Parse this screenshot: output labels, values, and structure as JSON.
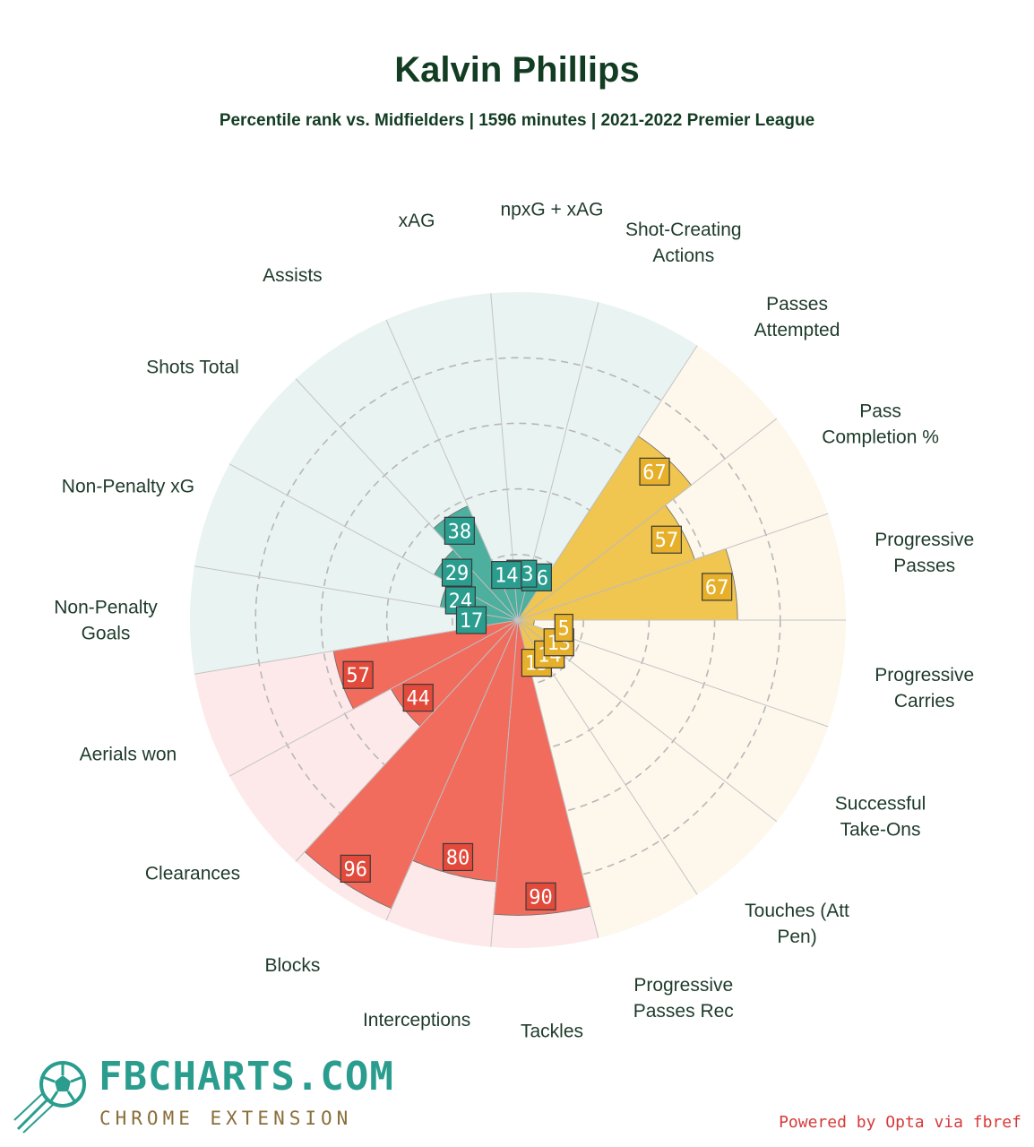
{
  "header": {
    "title": "Kalvin Phillips",
    "subtitle": "Percentile rank vs. Midfielders | 1596 minutes | 2021-2022 Premier League"
  },
  "chart_data": {
    "type": "polar-bar",
    "radial_range": [
      0,
      100
    ],
    "rings": [
      20,
      40,
      60,
      80
    ],
    "colors": {
      "attacking": "#4daf9e",
      "attacking_bg": "#e9f3f1",
      "possession": "#f0c550",
      "possession_bg": "#fdf7ec",
      "defending": "#f26c5e",
      "defending_bg": "#fde9e9",
      "attacking_label": "#2a9d8f",
      "possession_label": "#e7b02a",
      "defending_label": "#e24a3b"
    },
    "categories": [
      {
        "label": "Progressive\nPasses",
        "value": 67,
        "group": "possession"
      },
      {
        "label": "Pass\nCompletion %",
        "value": 57,
        "group": "possession"
      },
      {
        "label": "Passes\nAttempted",
        "value": 67,
        "group": "possession"
      },
      {
        "label": "Shot-Creating\nActions",
        "value": 16,
        "group": "attacking"
      },
      {
        "label": "npxG + xAG",
        "value": 13,
        "group": "attacking"
      },
      {
        "label": "xAG",
        "value": 14,
        "group": "attacking"
      },
      {
        "label": "Assists",
        "value": 38,
        "group": "attacking"
      },
      {
        "label": "Shots Total",
        "value": 29,
        "group": "attacking"
      },
      {
        "label": "Non-Penalty xG",
        "value": 24,
        "group": "attacking"
      },
      {
        "label": "Non-Penalty\nGoals",
        "value": 17,
        "group": "attacking"
      },
      {
        "label": "Aerials won",
        "value": 57,
        "group": "defending"
      },
      {
        "label": "Clearances",
        "value": 44,
        "group": "defending"
      },
      {
        "label": "Blocks",
        "value": 96,
        "group": "defending"
      },
      {
        "label": "Interceptions",
        "value": 80,
        "group": "defending"
      },
      {
        "label": "Tackles",
        "value": 90,
        "group": "defending"
      },
      {
        "label": "Progressive\nPasses Rec",
        "value": 15,
        "group": "possession"
      },
      {
        "label": "Touches (Att\nPen)",
        "value": 14,
        "group": "possession"
      },
      {
        "label": "Successful\nTake-Ons",
        "value": 13,
        "group": "possession"
      },
      {
        "label": "Progressive\nCarries",
        "value": 5,
        "group": "possession"
      }
    ]
  },
  "footer": {
    "brand_name": "FBCHARTS.COM",
    "brand_sub": "CHROME EXTENSION",
    "powered_by": "Powered by Opta via fbref",
    "logo_icon": "soccer-ball-icon"
  }
}
